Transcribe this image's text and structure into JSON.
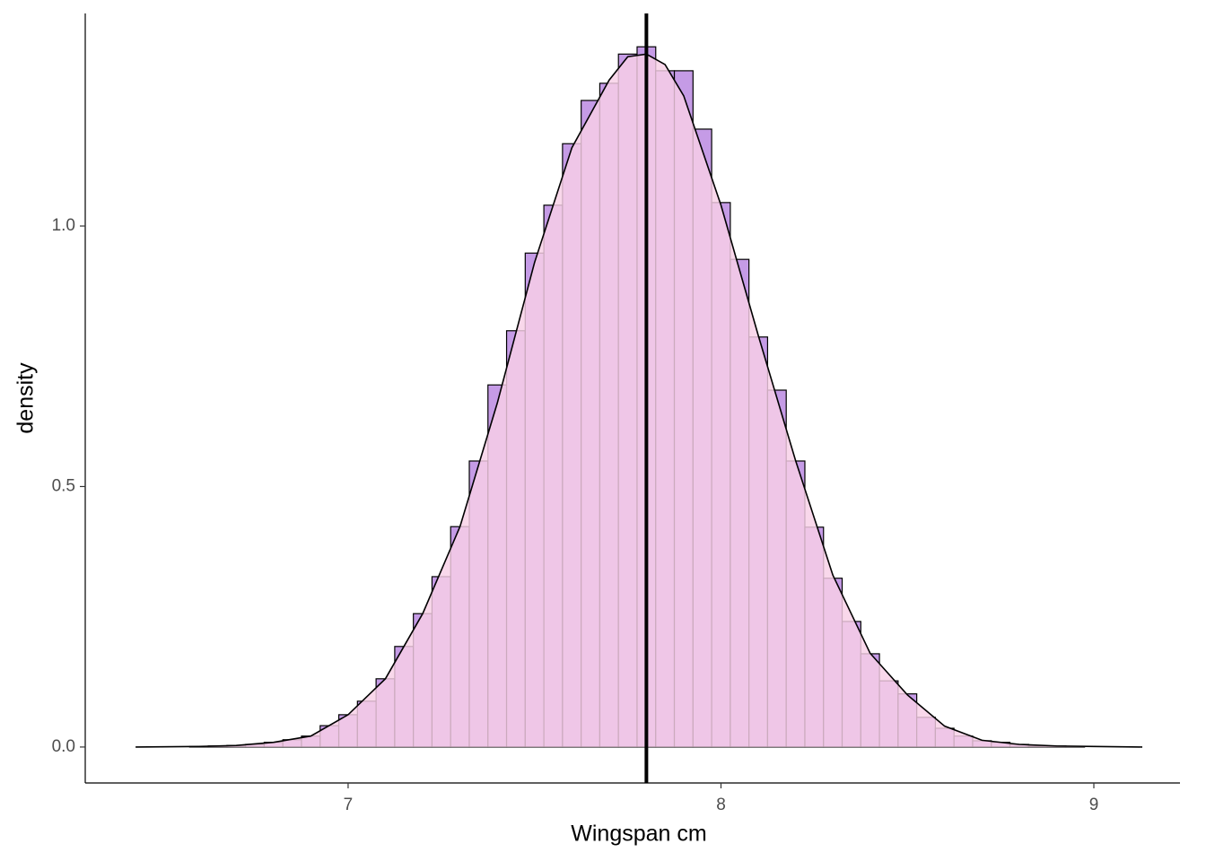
{
  "chart_data": {
    "type": "histogram",
    "x_label": "Wingspan cm",
    "y_label": "density",
    "bins": [
      6.575,
      6.625,
      6.675,
      6.725,
      6.775,
      6.825,
      6.875,
      6.925,
      6.975,
      7.025,
      7.075,
      7.125,
      7.175,
      7.225,
      7.275,
      7.325,
      7.375,
      7.425,
      7.475,
      7.525,
      7.575,
      7.625,
      7.675,
      7.725,
      7.775,
      7.825,
      7.875,
      7.925,
      7.975,
      8.025,
      8.075,
      8.125,
      8.175,
      8.225,
      8.275,
      8.325,
      8.375,
      8.425,
      8.475,
      8.525,
      8.575,
      8.625,
      8.675,
      8.725,
      8.775,
      8.825,
      8.875,
      8.925,
      8.975
    ],
    "values": [
      0.001,
      0.002,
      0.003,
      0.005,
      0.009,
      0.014,
      0.021,
      0.041,
      0.062,
      0.088,
      0.131,
      0.193,
      0.256,
      0.327,
      0.423,
      0.549,
      0.695,
      0.799,
      0.948,
      1.04,
      1.158,
      1.241,
      1.274,
      1.33,
      1.344,
      1.298,
      1.298,
      1.186,
      1.045,
      0.936,
      0.787,
      0.685,
      0.549,
      0.422,
      0.324,
      0.241,
      0.179,
      0.127,
      0.102,
      0.057,
      0.036,
      0.021,
      0.012,
      0.009,
      0.005,
      0.002,
      0.002,
      0.001
    ],
    "color": "#c59be6",
    "edge_color": "#000000",
    "density": {
      "x": [
        6.43,
        6.6,
        6.7,
        6.8,
        6.9,
        7.0,
        7.1,
        7.2,
        7.3,
        7.4,
        7.5,
        7.6,
        7.7,
        7.75,
        7.8,
        7.85,
        7.9,
        8.0,
        8.1,
        8.2,
        8.3,
        8.4,
        8.5,
        8.6,
        8.7,
        8.8,
        8.9,
        9.0,
        9.13
      ],
      "y": [
        0,
        0.001,
        0.003,
        0.009,
        0.021,
        0.062,
        0.131,
        0.256,
        0.423,
        0.66,
        0.93,
        1.15,
        1.28,
        1.325,
        1.33,
        1.31,
        1.25,
        1.04,
        0.79,
        0.55,
        0.33,
        0.18,
        0.1,
        0.04,
        0.013,
        0.005,
        0.002,
        0.001,
        0
      ],
      "fill": "#f8cfe6",
      "line_color": "#000000"
    },
    "reference_line": 7.8,
    "xlim": [
      6.295,
      9.231
    ],
    "ylim": [
      -0.069,
      1.408
    ],
    "xticks": [
      7,
      8,
      9
    ],
    "yticks": [
      {
        "value": 0,
        "label": "0.0"
      },
      {
        "value": 0.5,
        "label": "0.5"
      },
      {
        "value": 1,
        "label": "1.0"
      }
    ],
    "grid": false
  }
}
